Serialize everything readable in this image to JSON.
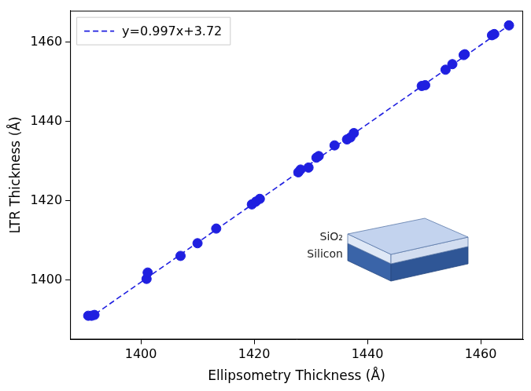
{
  "chart_data": {
    "type": "scatter",
    "x_label": "Ellipsometry Thickness (Å)",
    "y_label": "LTR Thickness (Å)",
    "series": [
      {
        "type": "scatter",
        "color": "#1f1fe0",
        "marker": "circle",
        "x": [
          1390.7,
          1391.3,
          1391.8,
          1401.0,
          1401.2,
          1407.0,
          1410.0,
          1413.3,
          1419.6,
          1420.3,
          1421.0,
          1427.8,
          1428.2,
          1429.6,
          1431.0,
          1431.4,
          1434.2,
          1436.4,
          1437.0,
          1437.6,
          1449.6,
          1450.2,
          1453.8,
          1455.0,
          1457.0,
          1457.2,
          1462.0,
          1462.4,
          1465.0
        ],
        "values": [
          1391.0,
          1391.0,
          1391.2,
          1400.3,
          1401.9,
          1406.1,
          1409.3,
          1413.0,
          1419.1,
          1419.8,
          1420.5,
          1427.2,
          1427.9,
          1428.4,
          1430.9,
          1431.3,
          1434.0,
          1435.5,
          1436.0,
          1437.1,
          1449.0,
          1449.2,
          1453.1,
          1454.5,
          1456.8,
          1457.0,
          1461.8,
          1462.1,
          1464.3
        ]
      },
      {
        "name": "y=0.997x+3.72",
        "type": "line",
        "color": "#1f1fe0",
        "line_style": "dashed",
        "x": [
          1390.7,
          1465.0
        ],
        "values": [
          1390.2,
          1464.3
        ]
      }
    ],
    "xlim": [
      1387.5,
      1467.5
    ],
    "xticks": [
      1400,
      1420,
      1440,
      1460
    ],
    "ylim": [
      1385,
      1468
    ],
    "yticks": [
      1400,
      1420,
      1440,
      1460
    ],
    "grid": false,
    "legend": "upper left",
    "annotations": [
      "SiO₂",
      "Silicon"
    ]
  }
}
